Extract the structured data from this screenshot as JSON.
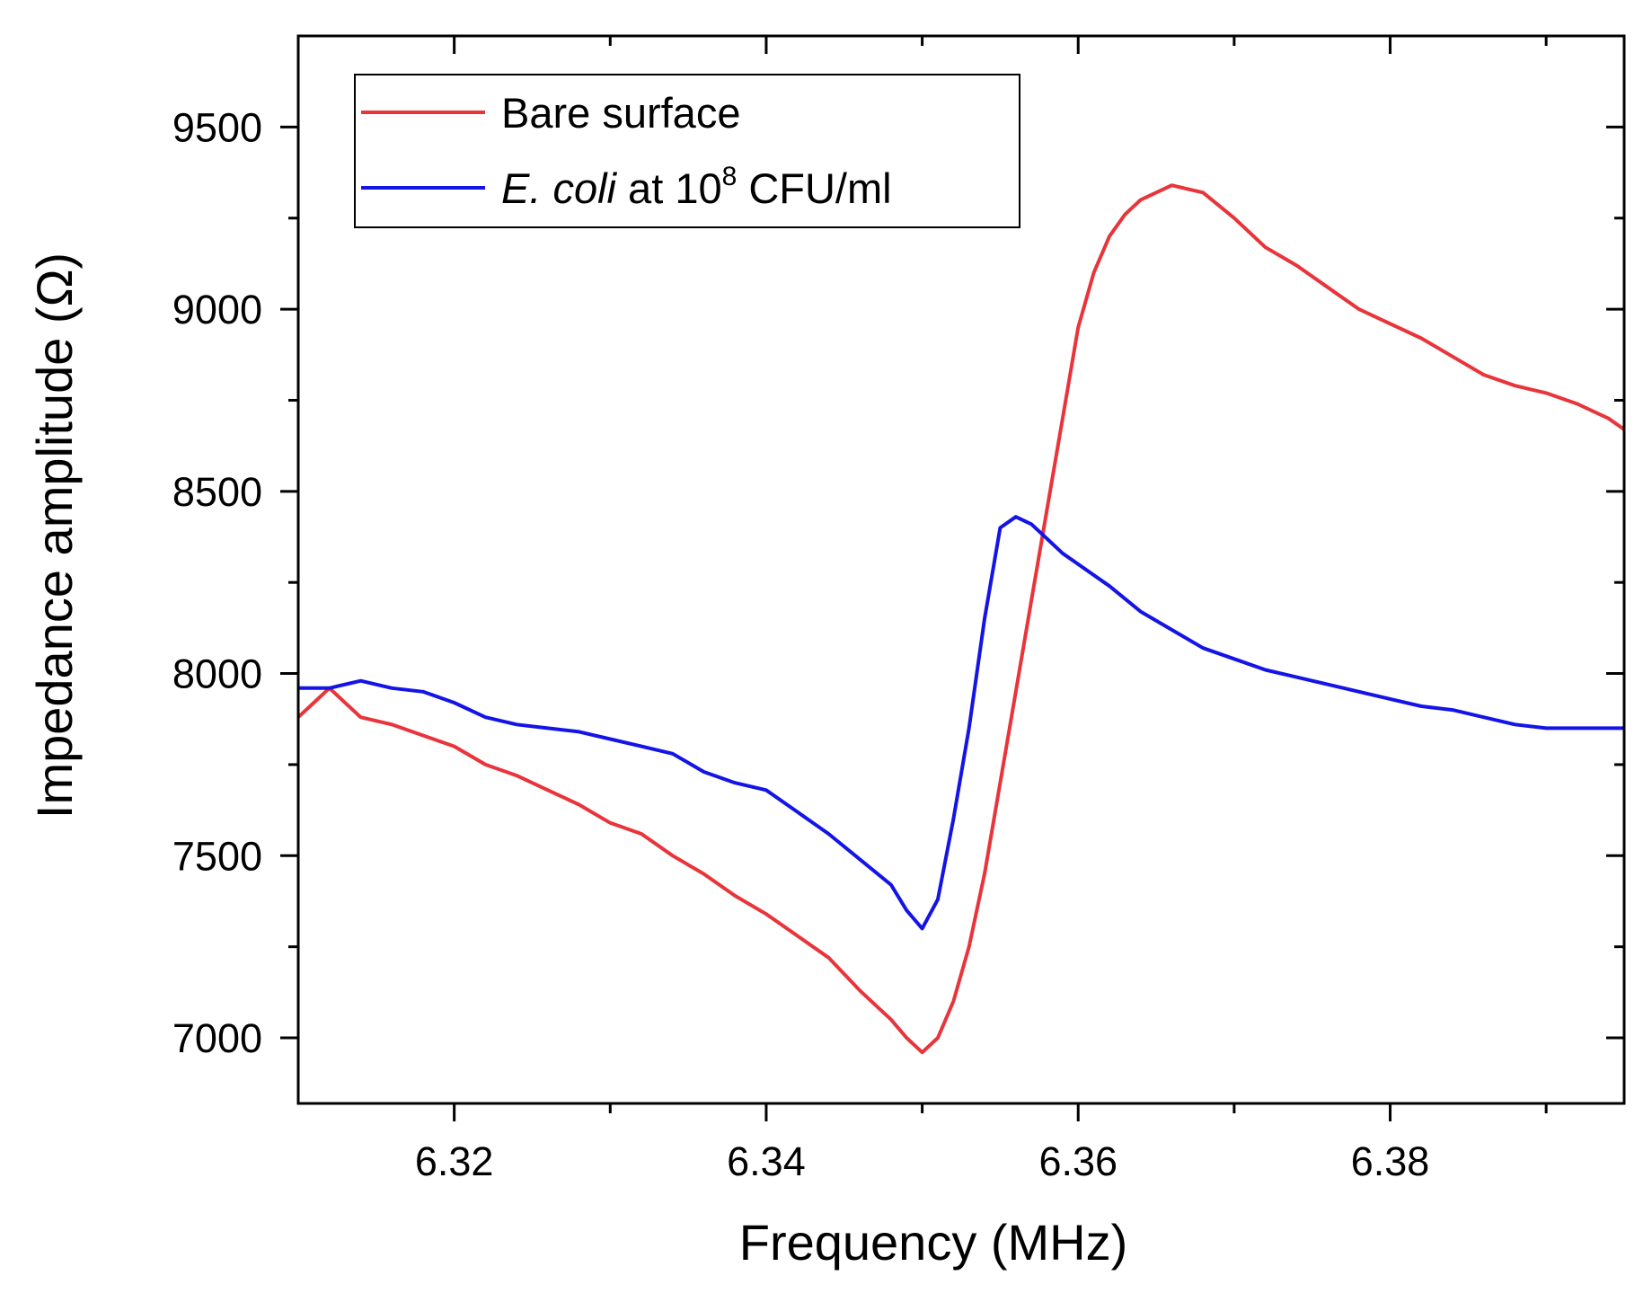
{
  "chart_data": {
    "type": "line",
    "title": "",
    "xlabel": "Frequency (MHz)",
    "ylabel": "Impedance amplitude (Ω)",
    "xlim": [
      6.31,
      6.395
    ],
    "ylim": [
      6820,
      9750
    ],
    "x_ticks": [
      6.32,
      6.34,
      6.36,
      6.38
    ],
    "x_tick_labels": [
      "6.32",
      "6.34",
      "6.36",
      "6.38"
    ],
    "x_minor_ticks": [
      6.33,
      6.35,
      6.37,
      6.39
    ],
    "y_ticks": [
      7000,
      7500,
      8000,
      8500,
      9000,
      9500
    ],
    "y_tick_labels": [
      "7000",
      "7500",
      "8000",
      "8500",
      "9000",
      "9500"
    ],
    "y_minor_ticks": [
      7250,
      7750,
      8250,
      8750,
      9250
    ],
    "legend": {
      "position": "top-left",
      "entries": [
        {
          "name": "Bare surface",
          "color": "#e8343a"
        },
        {
          "prefix_italic": "E. coli",
          "middle": " at 10",
          "superscript": "8",
          "suffix": " CFU/ml",
          "color": "#1414e6"
        }
      ]
    },
    "series": [
      {
        "name": "Bare surface",
        "color": "#e8343a",
        "x": [
          6.31,
          6.311,
          6.312,
          6.314,
          6.316,
          6.318,
          6.32,
          6.322,
          6.324,
          6.326,
          6.328,
          6.33,
          6.332,
          6.334,
          6.336,
          6.338,
          6.34,
          6.342,
          6.344,
          6.346,
          6.348,
          6.349,
          6.35,
          6.351,
          6.352,
          6.353,
          6.354,
          6.355,
          6.356,
          6.357,
          6.358,
          6.359,
          6.36,
          6.361,
          6.362,
          6.363,
          6.364,
          6.365,
          6.366,
          6.367,
          6.368,
          6.37,
          6.372,
          6.374,
          6.376,
          6.378,
          6.38,
          6.382,
          6.384,
          6.386,
          6.388,
          6.39,
          6.392,
          6.394,
          6.395
        ],
        "y": [
          7880,
          7920,
          7960,
          7880,
          7860,
          7830,
          7800,
          7750,
          7720,
          7680,
          7640,
          7590,
          7560,
          7500,
          7450,
          7390,
          7340,
          7280,
          7220,
          7130,
          7050,
          7000,
          6960,
          7000,
          7100,
          7250,
          7450,
          7700,
          7950,
          8200,
          8450,
          8700,
          8950,
          9100,
          9200,
          9260,
          9300,
          9320,
          9340,
          9330,
          9320,
          9250,
          9170,
          9120,
          9060,
          9000,
          8960,
          8920,
          8870,
          8820,
          8790,
          8770,
          8740,
          8700,
          8670
        ]
      },
      {
        "name": "E. coli at 10^8 CFU/ml",
        "color": "#1414e6",
        "x": [
          6.31,
          6.312,
          6.314,
          6.316,
          6.318,
          6.32,
          6.322,
          6.324,
          6.326,
          6.328,
          6.33,
          6.332,
          6.334,
          6.336,
          6.338,
          6.34,
          6.342,
          6.344,
          6.346,
          6.348,
          6.349,
          6.35,
          6.351,
          6.352,
          6.353,
          6.354,
          6.355,
          6.356,
          6.357,
          6.358,
          6.359,
          6.36,
          6.362,
          6.364,
          6.366,
          6.368,
          6.37,
          6.372,
          6.374,
          6.376,
          6.378,
          6.38,
          6.382,
          6.384,
          6.386,
          6.388,
          6.39,
          6.392,
          6.394,
          6.395
        ],
        "y": [
          7960,
          7960,
          7980,
          7960,
          7950,
          7920,
          7880,
          7860,
          7850,
          7840,
          7820,
          7800,
          7780,
          7730,
          7700,
          7680,
          7620,
          7560,
          7490,
          7420,
          7350,
          7300,
          7380,
          7600,
          7850,
          8150,
          8400,
          8430,
          8410,
          8370,
          8330,
          8300,
          8240,
          8170,
          8120,
          8070,
          8040,
          8010,
          7990,
          7970,
          7950,
          7930,
          7910,
          7900,
          7880,
          7860,
          7850,
          7850,
          7850,
          7850
        ]
      }
    ]
  }
}
